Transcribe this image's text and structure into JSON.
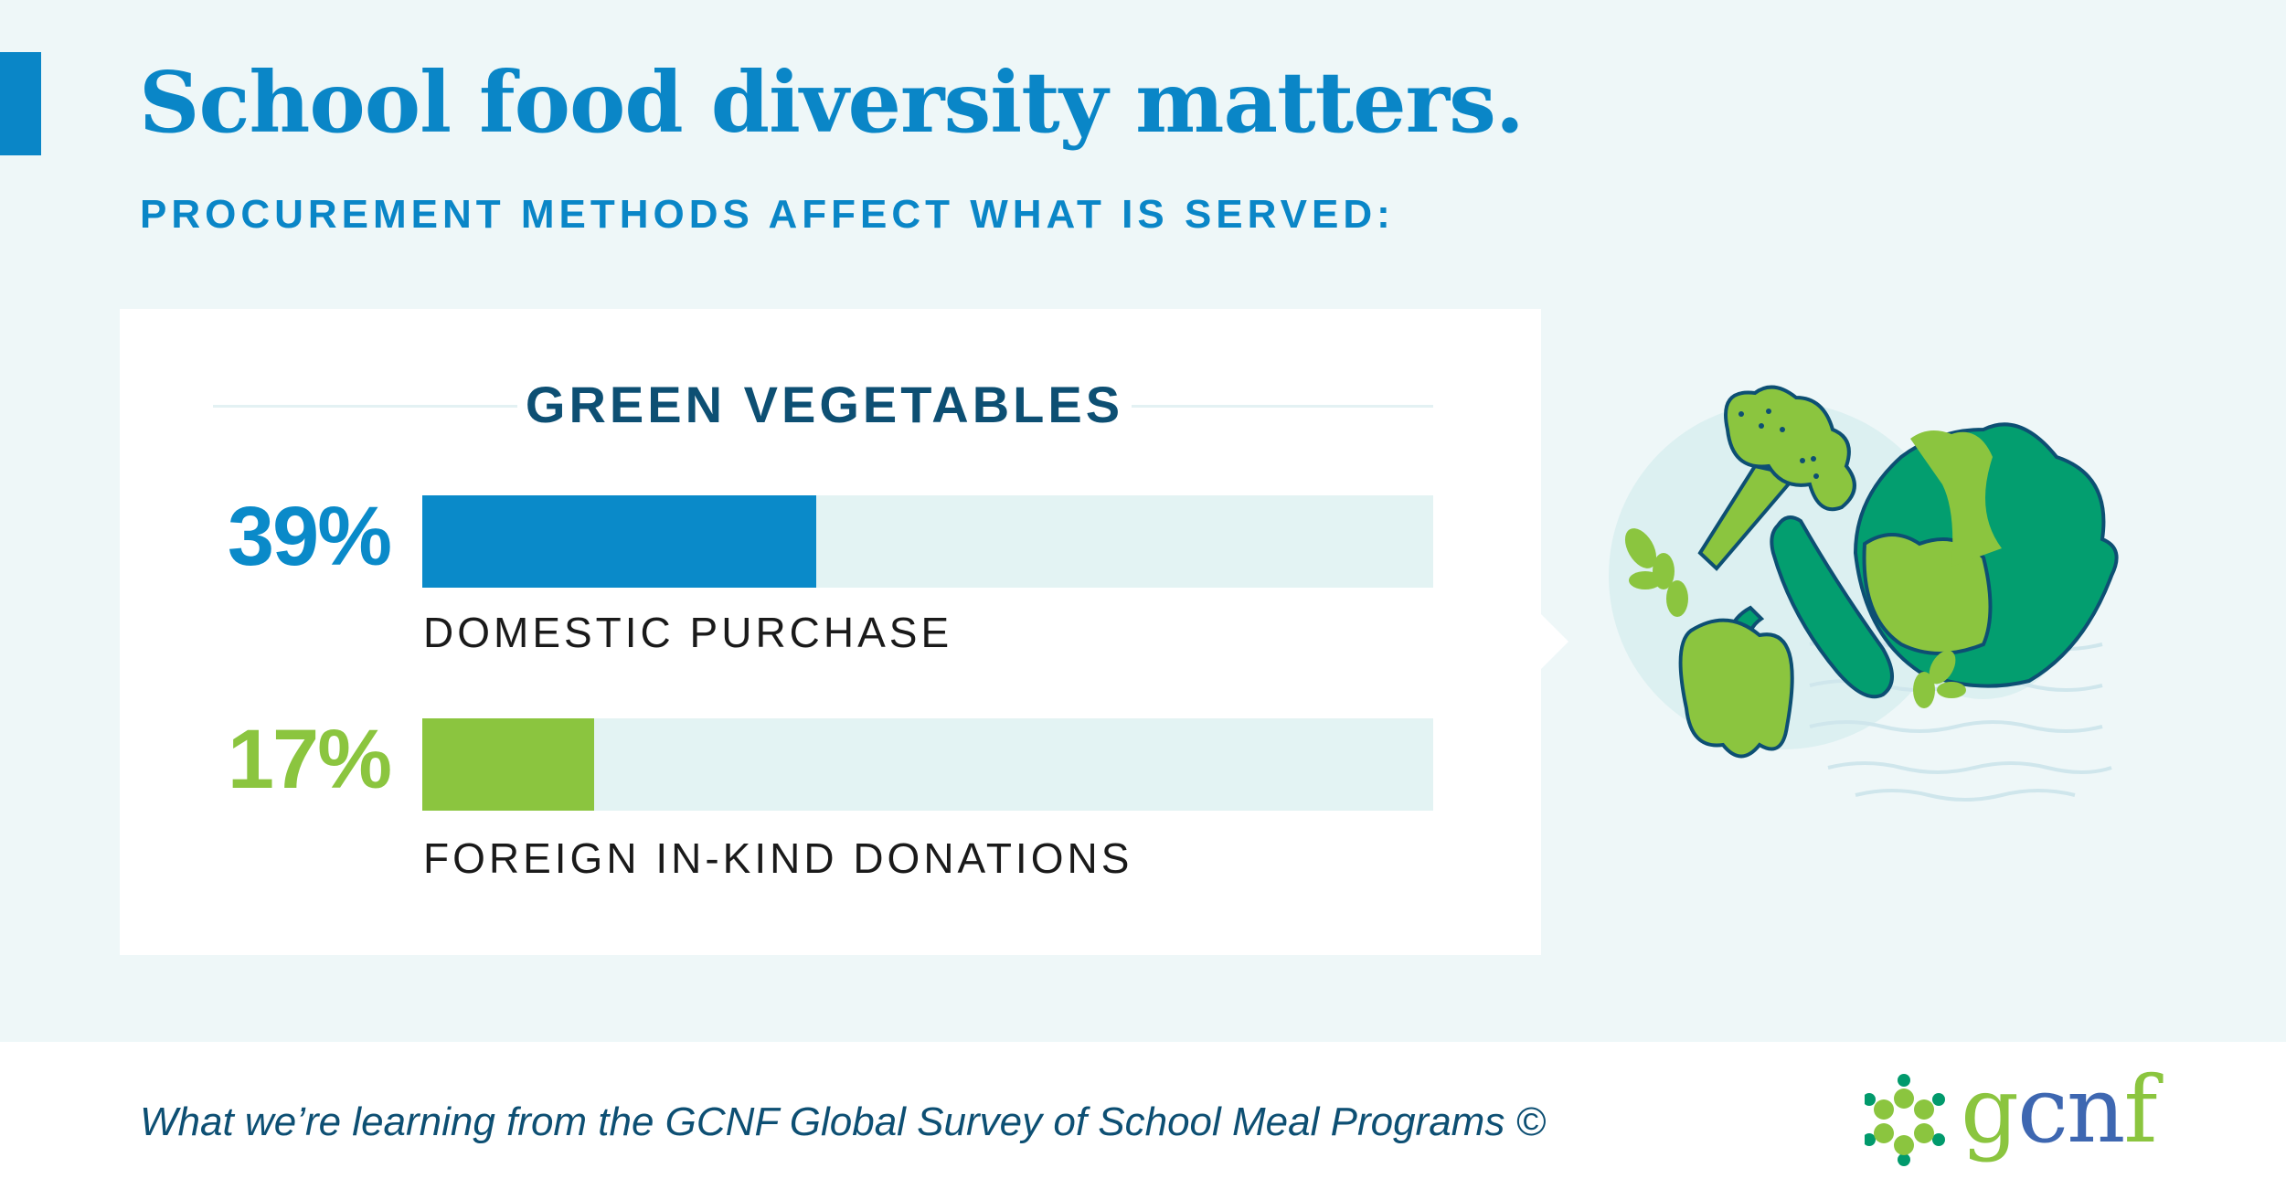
{
  "header": {
    "title": "School food diversity matters.",
    "subtitle": "PROCUREMENT METHODS AFFECT WHAT IS SERVED:"
  },
  "card": {
    "heading": "GREEN VEGETABLES",
    "items": [
      {
        "percent_label": "39%",
        "value": 39,
        "label": "DOMESTIC PURCHASE",
        "color": "#0a8ac9"
      },
      {
        "percent_label": "17%",
        "value": 17,
        "label": "FOREIGN IN-KIND DONATIONS",
        "color": "#8bc53f"
      }
    ]
  },
  "footer": {
    "text": "What we’re learning from the GCNF Global Survey of School Meal Programs ©",
    "logo": {
      "g": "g",
      "cn": "cn",
      "f": "f"
    }
  },
  "illustration": {
    "icons": [
      "broccoli-icon",
      "cabbage-icon",
      "cucumber-icon",
      "bell-pepper-icon",
      "leaf-sprig-icon"
    ]
  }
}
